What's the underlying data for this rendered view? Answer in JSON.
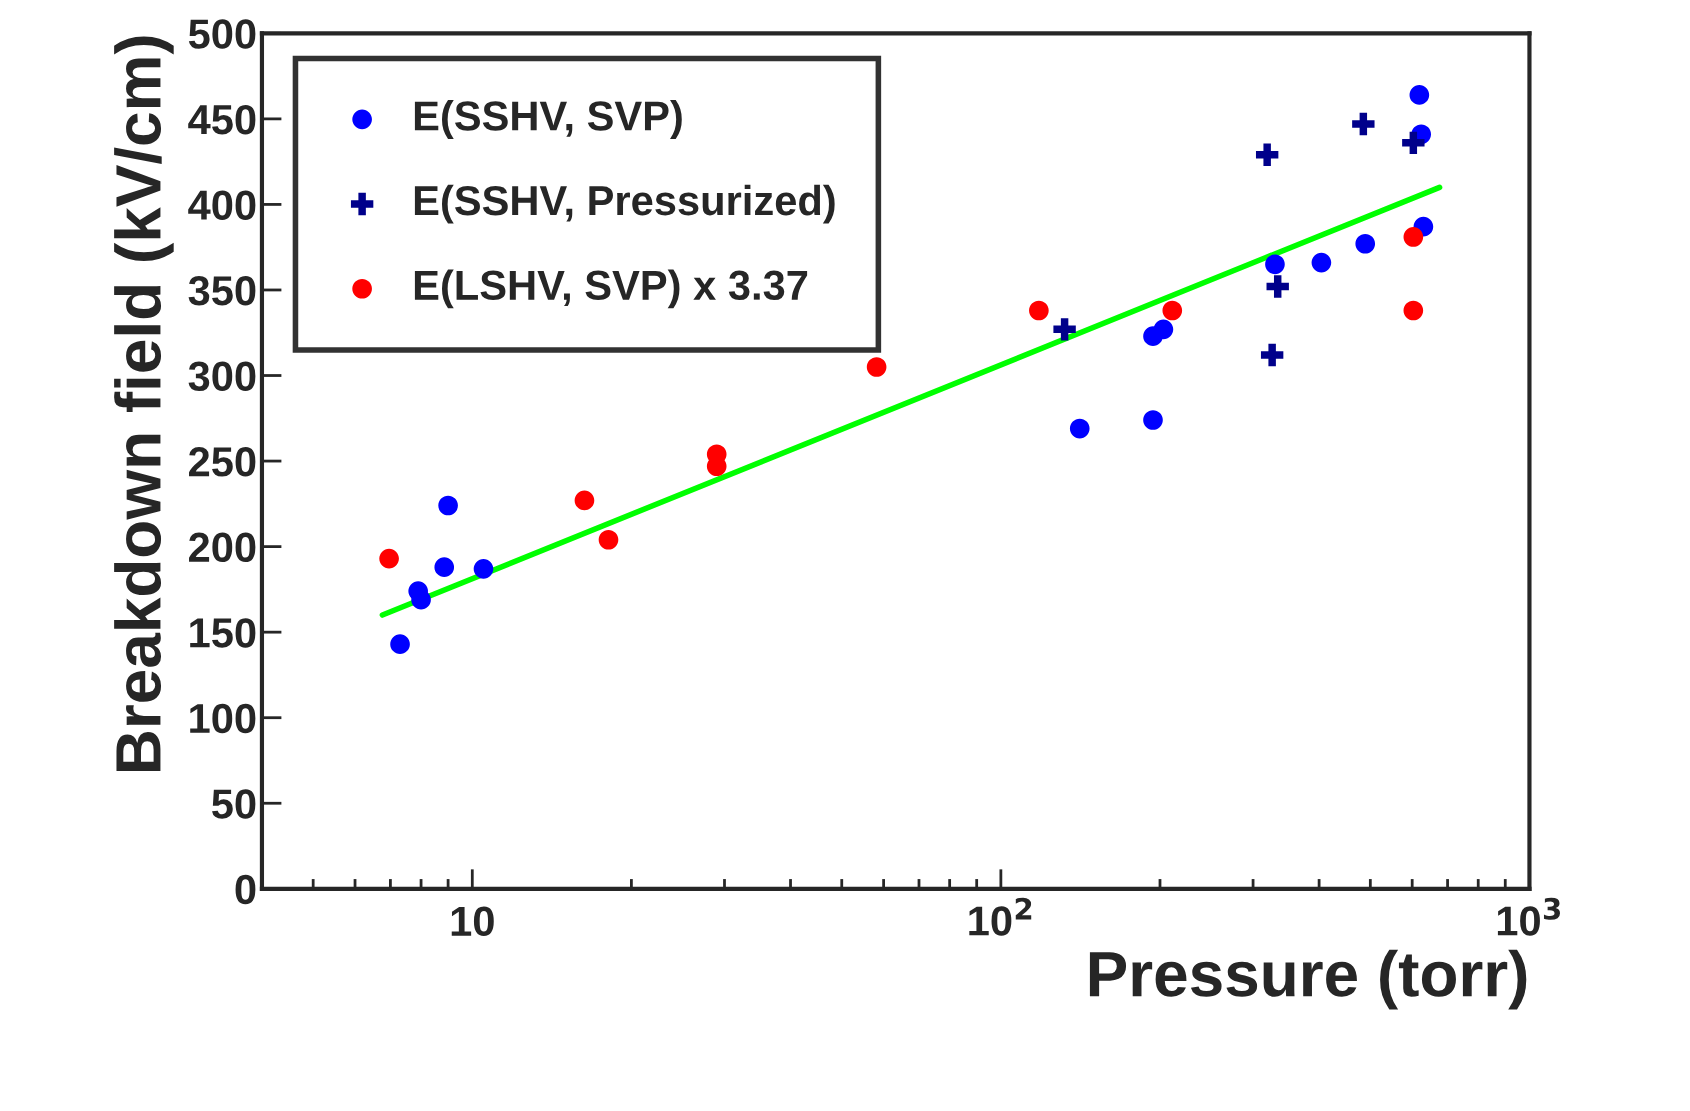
{
  "chart_data": {
    "type": "scatter",
    "xlabel": "Pressure (torr)",
    "ylabel": "Breakdown field (kV/cm)",
    "log": "x",
    "xlim": [
      4,
      1000
    ],
    "xticks": [
      10,
      {
        "value": 100,
        "label": "10$^{2}$"
      },
      {
        "value": 1000,
        "label": "10$^{3}$"
      }
    ],
    "ylim": [
      0,
      500
    ],
    "yticks": [
      0,
      50,
      100,
      150,
      200,
      250,
      300,
      350,
      400,
      450,
      500
    ],
    "grid": false,
    "legend": "top left",
    "series": [
      {
        "name": "E(SSHV, SVP)",
        "marker": "circle",
        "color": "#0000ff",
        "x": [
          7.3,
          7.9,
          8.0,
          8.85,
          9.0,
          10.5,
          141,
          194,
          194,
          203,
          330,
          404,
          489,
          619,
          624,
          630
        ],
        "values": [
          143,
          174,
          169,
          188,
          224,
          187,
          269,
          274,
          323,
          327,
          365,
          366,
          377,
          464,
          441,
          387
        ]
      },
      {
        "name": "E(SSHV, Pressurized)",
        "marker": "cross",
        "color": "#00008b",
        "x": [
          132,
          319,
          326,
          334,
          485,
          603
        ],
        "values": [
          327,
          429,
          312,
          352,
          447,
          436
        ]
      },
      {
        "name": "E(LSHV, SVP) x 3.37",
        "marker": "circle",
        "color": "#ff0000",
        "x": [
          6.96,
          16.3,
          18.1,
          29.0,
          29.0,
          58.2,
          118,
          211,
          603,
          603
        ],
        "values": [
          193,
          227,
          204,
          254,
          247,
          305,
          338,
          338,
          381,
          338
        ]
      },
      {
        "type": "line",
        "marker": "none",
        "color": "#00ff00",
        "x": [
          6.76,
          676
        ],
        "values": [
          160,
          410
        ]
      }
    ]
  }
}
